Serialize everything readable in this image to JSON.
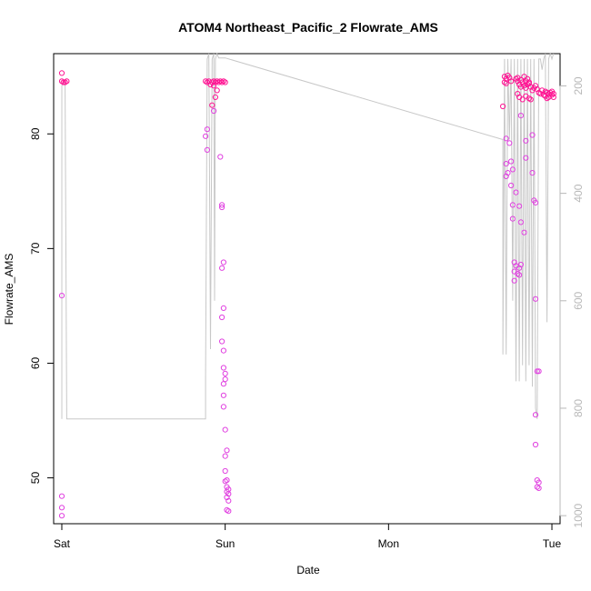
{
  "chart_data": {
    "type": "scatter",
    "title": "ATOM4 Northeast_Pacific_2 Flowrate_AMS",
    "xlabel": "Date",
    "ylabel": "Flowrate_AMS",
    "x_ticks": [
      "Sat",
      "Sun",
      "Mon",
      "Tue"
    ],
    "x_range_days": [
      -0.05,
      3.05
    ],
    "y_ticks": [
      50,
      60,
      70,
      80
    ],
    "ylim": [
      46,
      87
    ],
    "y2_ticks": [
      200,
      400,
      600,
      800,
      1000
    ],
    "y2_lim": [
      1015,
      140
    ],
    "y2_reversed": true,
    "grid": false,
    "colors": {
      "points": "#ff1493",
      "points_alt": "#e040e0",
      "altitude_line": "#c8c8c8"
    },
    "series": [
      {
        "type": "scatter",
        "points": [
          [
            0.0,
            85.3
          ],
          [
            0.0,
            84.6
          ],
          [
            0.01,
            84.5
          ],
          [
            0.02,
            84.5
          ],
          [
            0.03,
            84.6
          ],
          [
            0.0,
            65.9
          ],
          [
            0.0,
            48.4
          ],
          [
            0.0,
            47.4
          ],
          [
            0.0,
            46.7
          ],
          [
            0.88,
            84.6
          ],
          [
            0.89,
            84.5
          ],
          [
            0.9,
            84.6
          ],
          [
            0.92,
            84.5
          ],
          [
            0.93,
            84.6
          ],
          [
            0.94,
            84.5
          ],
          [
            0.95,
            84.6
          ],
          [
            0.96,
            84.5
          ],
          [
            0.97,
            84.6
          ],
          [
            0.98,
            84.5
          ],
          [
            0.99,
            84.6
          ],
          [
            1.0,
            84.5
          ],
          [
            0.91,
            84.3
          ],
          [
            0.93,
            84.2
          ],
          [
            0.89,
            80.4
          ],
          [
            0.88,
            79.8
          ],
          [
            0.89,
            78.6
          ],
          [
            0.92,
            82.5
          ],
          [
            0.93,
            82.0
          ],
          [
            0.94,
            83.2
          ],
          [
            0.95,
            83.8
          ],
          [
            0.97,
            78.0
          ],
          [
            0.98,
            73.8
          ],
          [
            0.98,
            73.6
          ],
          [
            0.99,
            68.8
          ],
          [
            0.98,
            68.3
          ],
          [
            0.99,
            64.8
          ],
          [
            0.98,
            64.0
          ],
          [
            0.98,
            61.9
          ],
          [
            0.99,
            61.1
          ],
          [
            0.99,
            59.6
          ],
          [
            1.0,
            59.1
          ],
          [
            1.0,
            58.6
          ],
          [
            0.99,
            58.2
          ],
          [
            0.99,
            57.2
          ],
          [
            0.99,
            56.2
          ],
          [
            1.0,
            54.2
          ],
          [
            1.01,
            52.4
          ],
          [
            1.0,
            51.9
          ],
          [
            1.0,
            50.6
          ],
          [
            1.01,
            49.8
          ],
          [
            1.0,
            49.7
          ],
          [
            1.01,
            49.2
          ],
          [
            1.02,
            49.0
          ],
          [
            1.01,
            48.8
          ],
          [
            1.02,
            48.6
          ],
          [
            1.01,
            48.3
          ],
          [
            1.02,
            48.0
          ],
          [
            1.01,
            47.2
          ],
          [
            1.02,
            47.1
          ],
          [
            2.71,
            85.0
          ],
          [
            2.72,
            84.8
          ],
          [
            2.73,
            85.1
          ],
          [
            2.74,
            84.9
          ],
          [
            2.71,
            84.5
          ],
          [
            2.72,
            84.4
          ],
          [
            2.75,
            84.6
          ],
          [
            2.7,
            82.4
          ],
          [
            2.72,
            79.6
          ],
          [
            2.74,
            79.2
          ],
          [
            2.72,
            77.4
          ],
          [
            2.73,
            76.6
          ],
          [
            2.72,
            76.3
          ],
          [
            2.75,
            77.6
          ],
          [
            2.76,
            76.9
          ],
          [
            2.75,
            75.5
          ],
          [
            2.76,
            73.8
          ],
          [
            2.76,
            72.6
          ],
          [
            2.77,
            68.8
          ],
          [
            2.78,
            68.5
          ],
          [
            2.77,
            68.0
          ],
          [
            2.79,
            67.8
          ],
          [
            2.77,
            67.2
          ],
          [
            2.8,
            68.3
          ],
          [
            2.81,
            68.6
          ],
          [
            2.8,
            67.7
          ],
          [
            2.78,
            74.9
          ],
          [
            2.8,
            73.7
          ],
          [
            2.81,
            72.3
          ],
          [
            2.83,
            71.4
          ],
          [
            2.78,
            84.8
          ],
          [
            2.79,
            84.6
          ],
          [
            2.8,
            84.3
          ],
          [
            2.81,
            84.1
          ],
          [
            2.82,
            84.5
          ],
          [
            2.83,
            84.2
          ],
          [
            2.84,
            84.0
          ],
          [
            2.85,
            84.3
          ],
          [
            2.86,
            84.5
          ],
          [
            2.87,
            84.1
          ],
          [
            2.88,
            83.8
          ],
          [
            2.89,
            84.0
          ],
          [
            2.9,
            84.2
          ],
          [
            2.91,
            83.9
          ],
          [
            2.92,
            83.6
          ],
          [
            2.93,
            83.5
          ],
          [
            2.94,
            83.8
          ],
          [
            2.95,
            83.4
          ],
          [
            2.96,
            83.7
          ],
          [
            2.97,
            83.6
          ],
          [
            2.98,
            83.5
          ],
          [
            2.99,
            83.6
          ],
          [
            3.0,
            83.7
          ],
          [
            3.01,
            83.5
          ],
          [
            2.79,
            84.9
          ],
          [
            2.81,
            84.7
          ],
          [
            2.83,
            85.0
          ],
          [
            2.84,
            84.6
          ],
          [
            2.85,
            84.8
          ],
          [
            2.79,
            83.5
          ],
          [
            2.8,
            83.2
          ],
          [
            2.82,
            83.0
          ],
          [
            2.84,
            83.3
          ],
          [
            2.86,
            83.1
          ],
          [
            2.81,
            81.6
          ],
          [
            2.84,
            79.4
          ],
          [
            2.84,
            77.9
          ],
          [
            2.86,
            84.4
          ],
          [
            2.87,
            83.0
          ],
          [
            2.88,
            79.9
          ],
          [
            2.88,
            76.6
          ],
          [
            2.89,
            74.2
          ],
          [
            2.9,
            74.0
          ],
          [
            2.9,
            65.6
          ],
          [
            2.91,
            59.3
          ],
          [
            2.92,
            59.3
          ],
          [
            2.9,
            55.5
          ],
          [
            2.9,
            52.9
          ],
          [
            2.91,
            49.8
          ],
          [
            2.92,
            49.6
          ],
          [
            2.91,
            49.2
          ],
          [
            2.92,
            49.1
          ],
          [
            2.96,
            83.3
          ],
          [
            2.97,
            83.1
          ],
          [
            2.98,
            83.2
          ],
          [
            3.0,
            83.4
          ],
          [
            3.01,
            83.2
          ]
        ]
      },
      {
        "type": "line",
        "name_axis": "right",
        "points": [
          [
            0.0,
            820
          ],
          [
            0.0,
            200
          ],
          [
            0.01,
            190
          ],
          [
            0.02,
            200
          ],
          [
            0.03,
            820
          ],
          [
            0.03,
            820
          ],
          [
            0.88,
            820
          ],
          [
            0.88,
            740
          ],
          [
            0.89,
            150
          ],
          [
            0.9,
            140
          ],
          [
            0.91,
            690
          ],
          [
            0.92,
            150
          ],
          [
            0.93,
            140
          ],
          [
            0.935,
            600
          ],
          [
            0.94,
            150
          ],
          [
            0.95,
            140
          ],
          [
            0.96,
            148
          ],
          [
            1.0,
            148
          ],
          [
            2.7,
            300
          ],
          [
            2.7,
            700
          ],
          [
            2.71,
            150
          ],
          [
            2.72,
            700
          ],
          [
            2.73,
            150
          ],
          [
            2.74,
            300
          ],
          [
            2.75,
            150
          ],
          [
            2.76,
            600
          ],
          [
            2.77,
            150
          ],
          [
            2.78,
            750
          ],
          [
            2.79,
            150
          ],
          [
            2.8,
            750
          ],
          [
            2.81,
            150
          ],
          [
            2.82,
            720
          ],
          [
            2.83,
            150
          ],
          [
            2.84,
            750
          ],
          [
            2.85,
            150
          ],
          [
            2.86,
            720
          ],
          [
            2.87,
            150
          ],
          [
            2.88,
            760
          ],
          [
            2.89,
            150
          ],
          [
            2.9,
            800
          ],
          [
            2.91,
            820
          ],
          [
            2.92,
            150
          ],
          [
            2.93,
            150
          ],
          [
            2.94,
            170
          ],
          [
            2.95,
            150
          ],
          [
            2.96,
            140
          ],
          [
            2.97,
            640
          ],
          [
            2.98,
            150
          ],
          [
            2.99,
            140
          ],
          [
            3.0,
            150
          ],
          [
            3.01,
            140
          ]
        ]
      }
    ]
  }
}
